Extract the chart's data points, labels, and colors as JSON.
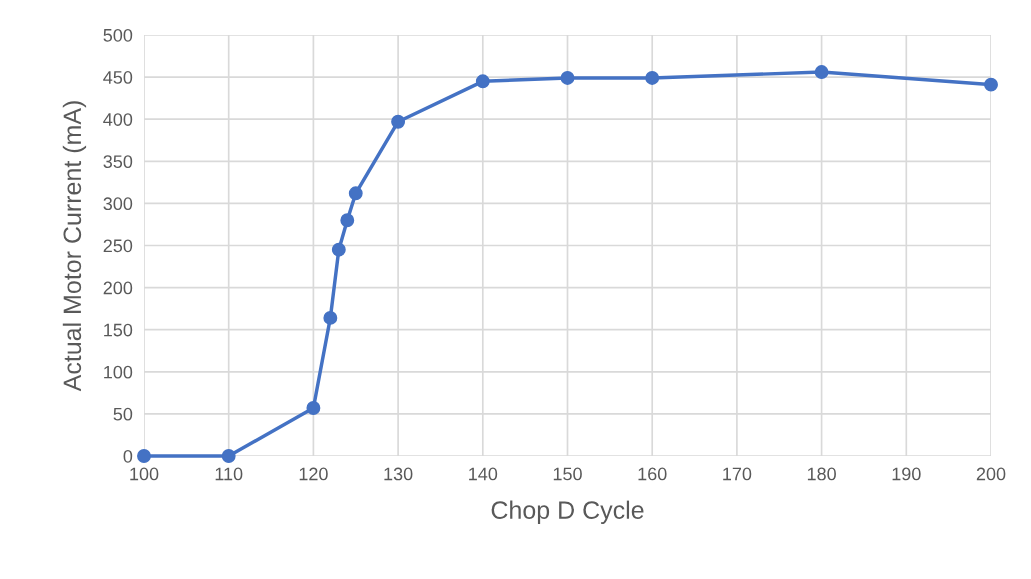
{
  "chart_data": {
    "type": "line",
    "xlabel": "Chop D Cycle",
    "ylabel": "Actual Motor Current (mA)",
    "x": [
      100,
      110,
      120,
      122,
      123,
      124,
      125,
      130,
      140,
      150,
      160,
      180,
      200
    ],
    "series": [
      {
        "color": "#4472c4",
        "values": [
          0,
          0,
          57,
          164,
          245,
          280,
          312,
          397,
          445,
          449,
          449,
          456,
          441
        ]
      }
    ],
    "xlim": [
      100,
      200
    ],
    "xticks": [
      100,
      110,
      120,
      130,
      140,
      150,
      160,
      170,
      180,
      190,
      200
    ],
    "ylim": [
      0,
      500
    ],
    "yticks": [
      0,
      50,
      100,
      150,
      200,
      250,
      300,
      350,
      400,
      450,
      500
    ],
    "grid": true,
    "marker": "circle",
    "line_style": "solid",
    "legend": false
  }
}
